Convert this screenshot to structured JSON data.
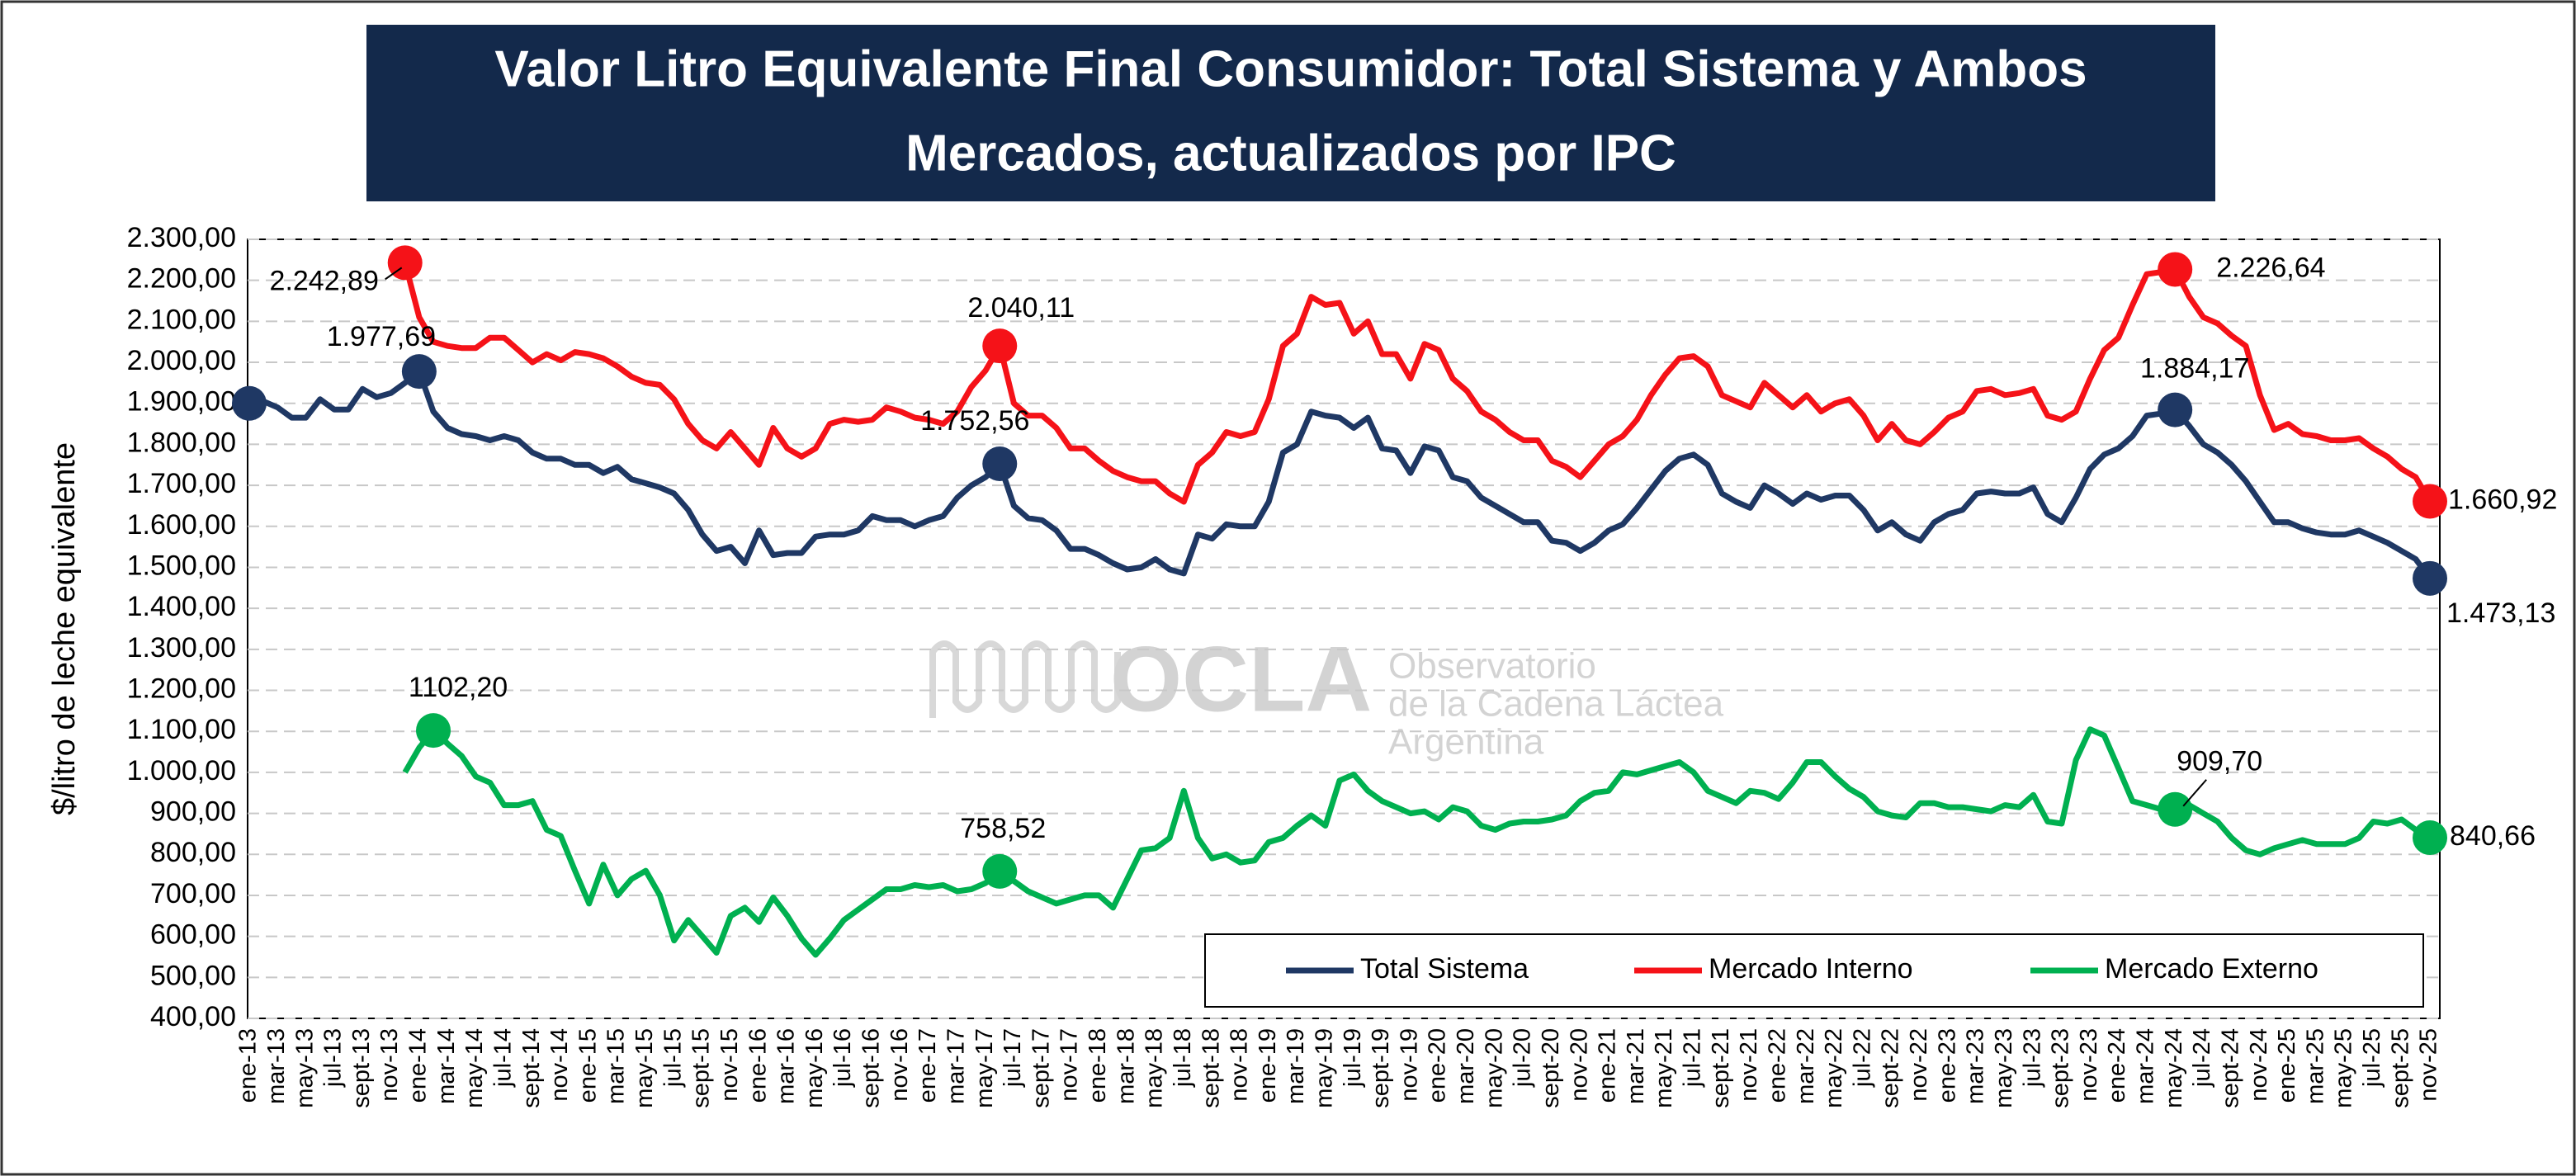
{
  "chart_data": {
    "type": "line",
    "title": [
      "Valor Litro Equivalente Final Consumidor: Total Sistema y Ambos",
      "Mercados, actualizados por IPC"
    ],
    "y_label": "$/litro de leche equivalente",
    "watermark": {
      "logo": "OCLA",
      "lines": [
        "Observatorio",
        "de la Cadena Láctea",
        "Argentina"
      ]
    },
    "categories": [
      "ene-13",
      null,
      "mar-13",
      null,
      "may-13",
      null,
      "jul-13",
      null,
      "sept-13",
      null,
      "nov-13",
      null,
      "ene-14",
      null,
      "mar-14",
      null,
      "may-14",
      null,
      "jul-14",
      null,
      "sept-14",
      null,
      "nov-14",
      null,
      "ene-15",
      null,
      "mar-15",
      null,
      "may-15",
      null,
      "jul-15",
      null,
      "sept-15",
      null,
      "nov-15",
      null,
      "ene-16",
      null,
      "mar-16",
      null,
      "may-16",
      null,
      "jul-16",
      null,
      "sept-16",
      null,
      "nov-16",
      null,
      "ene-17",
      null,
      "mar-17",
      null,
      "may-17",
      null,
      "jul-17",
      null,
      "sept-17",
      null,
      "nov-17",
      null,
      "ene-18",
      null,
      "mar-18",
      null,
      "may-18",
      null,
      "jul-18",
      null,
      "sept-18",
      null,
      "nov-18",
      null,
      "ene-19",
      null,
      "mar-19",
      null,
      "may-19",
      null,
      "jul-19",
      null,
      "sept-19",
      null,
      "nov-19",
      null,
      "ene-20",
      null,
      "mar-20",
      null,
      "may-20",
      null,
      "jul-20",
      null,
      "sept-20",
      null,
      "nov-20",
      null,
      "ene-21",
      null,
      "mar-21",
      null,
      "may-21",
      null,
      "jul-21",
      null,
      "sept-21",
      null,
      "nov-21",
      null,
      "ene-22",
      null,
      "mar-22",
      null,
      "may-22",
      null,
      "jul-22",
      null,
      "sept-22",
      null,
      "nov-22",
      null,
      "ene-23",
      null,
      "mar-23",
      null,
      "may-23",
      null,
      "jul-23",
      null,
      "sept-23",
      null,
      "nov-23",
      null,
      "ene-24",
      null,
      "mar-24",
      null,
      "may-24",
      null,
      "jul-24",
      null,
      "sept-24",
      null,
      "nov-24",
      null,
      "ene-25",
      null,
      "mar-25",
      null,
      "may-25",
      null,
      "jul-25",
      null,
      "sept-25",
      null,
      "nov-25"
    ],
    "series": [
      {
        "name": "Total Sistema",
        "color": "#1f3864",
        "markers": [
          0,
          12,
          53,
          136,
          154
        ],
        "values": [
          1900,
          1905,
          1890,
          1865,
          1865,
          1910,
          1885,
          1885,
          1935,
          1915,
          1925,
          1950,
          1977.69,
          1880,
          1840,
          1825,
          1820,
          1810,
          1820,
          1810,
          1780,
          1765,
          1765,
          1750,
          1750,
          1730,
          1745,
          1715,
          1705,
          1695,
          1680,
          1640,
          1580,
          1540,
          1550,
          1510,
          1590,
          1530,
          1535,
          1535,
          1575,
          1580,
          1580,
          1590,
          1625,
          1615,
          1615,
          1600,
          1615,
          1625,
          1670,
          1700,
          1720,
          1752.56,
          1650,
          1620,
          1615,
          1590,
          1545,
          1545,
          1530,
          1510,
          1495,
          1500,
          1520,
          1495,
          1485,
          1580,
          1570,
          1605,
          1600,
          1600,
          1660,
          1780,
          1800,
          1880,
          1870,
          1865,
          1840,
          1865,
          1790,
          1785,
          1730,
          1795,
          1785,
          1720,
          1710,
          1670,
          1650,
          1630,
          1610,
          1610,
          1565,
          1560,
          1540,
          1560,
          1590,
          1605,
          1645,
          1690,
          1735,
          1765,
          1775,
          1750,
          1680,
          1660,
          1645,
          1700,
          1680,
          1655,
          1680,
          1665,
          1675,
          1675,
          1640,
          1590,
          1610,
          1580,
          1565,
          1610,
          1630,
          1640,
          1680,
          1685,
          1680,
          1680,
          1695,
          1630,
          1610,
          1670,
          1740,
          1775,
          1790,
          1820,
          1870,
          1875,
          1884.17,
          1845,
          1800,
          1780,
          1750,
          1710,
          1660,
          1610,
          1610,
          1595,
          1585,
          1580,
          1580,
          1590,
          1575,
          1560,
          1540,
          1520,
          1473.13
        ],
        "value_labels": [
          null,
          null,
          null,
          null,
          null,
          null,
          null,
          null,
          null,
          null,
          null,
          null,
          "1.977,69",
          null,
          null,
          null,
          null,
          null,
          null,
          null,
          null,
          null,
          null,
          null,
          null,
          null,
          null,
          null,
          null,
          null,
          null,
          null,
          null,
          null,
          null,
          null,
          null,
          null,
          null,
          null,
          null,
          null,
          null,
          null,
          null,
          null,
          null,
          null,
          null,
          null,
          null,
          null,
          null,
          "1.752,56",
          null,
          null,
          null,
          null,
          null,
          null,
          null,
          null,
          null,
          null,
          null,
          null,
          null,
          null,
          null,
          null,
          null,
          null,
          null,
          null,
          null,
          null,
          null,
          null,
          null,
          null,
          null,
          null,
          null,
          null,
          null,
          null,
          null,
          null,
          null,
          null,
          null,
          null,
          null,
          null,
          null,
          null,
          null,
          null,
          null,
          null,
          null,
          null,
          null,
          null,
          null,
          null,
          null,
          null,
          null,
          null,
          null,
          null,
          null,
          null,
          null,
          null,
          null,
          null,
          null,
          null,
          null,
          null,
          null,
          null,
          null,
          null,
          null,
          null,
          null,
          null,
          null,
          null,
          null,
          null,
          null,
          null,
          "1.884,17",
          null,
          null,
          null,
          null,
          null,
          null,
          null,
          null,
          null,
          null,
          null,
          null,
          null,
          null,
          null,
          null,
          null,
          "1.473,13"
        ]
      },
      {
        "name": "Mercado Interno",
        "color": "#f51218",
        "markers": [
          11,
          53,
          136,
          154
        ],
        "values": [
          null,
          null,
          null,
          null,
          null,
          null,
          null,
          null,
          null,
          null,
          null,
          2242.89,
          2110,
          2050,
          2040,
          2035,
          2035,
          2060,
          2060,
          2030,
          2000,
          2020,
          2005,
          2025,
          2020,
          2010,
          1990,
          1965,
          1950,
          1945,
          1910,
          1850,
          1810,
          1790,
          1830,
          1790,
          1750,
          1840,
          1790,
          1770,
          1790,
          1850,
          1860,
          1855,
          1860,
          1890,
          1880,
          1865,
          1860,
          1850,
          1880,
          1940,
          1980,
          2040.11,
          1900,
          1870,
          1870,
          1840,
          1790,
          1790,
          1760,
          1735,
          1720,
          1710,
          1710,
          1680,
          1660,
          1750,
          1780,
          1830,
          1820,
          1830,
          1910,
          2040,
          2070,
          2160,
          2140,
          2145,
          2070,
          2100,
          2020,
          2020,
          1960,
          2045,
          2030,
          1960,
          1930,
          1880,
          1860,
          1830,
          1810,
          1810,
          1760,
          1745,
          1720,
          1760,
          1800,
          1820,
          1860,
          1920,
          1970,
          2010,
          2015,
          1990,
          1920,
          1905,
          1890,
          1950,
          1920,
          1890,
          1920,
          1880,
          1900,
          1910,
          1870,
          1810,
          1850,
          1810,
          1800,
          1830,
          1865,
          1880,
          1930,
          1935,
          1920,
          1925,
          1935,
          1870,
          1860,
          1880,
          1960,
          2030,
          2060,
          2140,
          2215,
          2220,
          2226.64,
          2160,
          2110,
          2095,
          2065,
          2040,
          1920,
          1835,
          1850,
          1825,
          1820,
          1810,
          1810,
          1815,
          1790,
          1770,
          1740,
          1720,
          1660.92
        ],
        "value_labels": [
          null,
          null,
          null,
          null,
          null,
          null,
          null,
          null,
          null,
          null,
          null,
          "2.242,89",
          null,
          null,
          null,
          null,
          null,
          null,
          null,
          null,
          null,
          null,
          null,
          null,
          null,
          null,
          null,
          null,
          null,
          null,
          null,
          null,
          null,
          null,
          null,
          null,
          null,
          null,
          null,
          null,
          null,
          null,
          null,
          null,
          null,
          null,
          null,
          null,
          null,
          null,
          null,
          null,
          null,
          "2.040,11",
          null,
          null,
          null,
          null,
          null,
          null,
          null,
          null,
          null,
          null,
          null,
          null,
          null,
          null,
          null,
          null,
          null,
          null,
          null,
          null,
          null,
          null,
          null,
          null,
          null,
          null,
          null,
          null,
          null,
          null,
          null,
          null,
          null,
          null,
          null,
          null,
          null,
          null,
          null,
          null,
          null,
          null,
          null,
          null,
          null,
          null,
          null,
          null,
          null,
          null,
          null,
          null,
          null,
          null,
          null,
          null,
          null,
          null,
          null,
          null,
          null,
          null,
          null,
          null,
          null,
          null,
          null,
          null,
          null,
          null,
          null,
          null,
          null,
          null,
          null,
          null,
          null,
          null,
          null,
          null,
          null,
          null,
          "2.226,64",
          null,
          null,
          null,
          null,
          null,
          null,
          null,
          null,
          null,
          null,
          null,
          null,
          null,
          null,
          null,
          null,
          null,
          "1.660,92"
        ]
      },
      {
        "name": "Mercado Externo",
        "color": "#00b050",
        "markers": [
          13,
          53,
          136,
          154
        ],
        "values": [
          null,
          null,
          null,
          null,
          null,
          null,
          null,
          null,
          null,
          null,
          null,
          1000,
          1060,
          1102.2,
          1070,
          1040,
          990,
          975,
          920,
          920,
          930,
          860,
          845,
          760,
          680,
          775,
          700,
          740,
          760,
          700,
          590,
          640,
          600,
          560,
          650,
          670,
          635,
          695,
          650,
          595,
          555,
          595,
          640,
          665,
          690,
          715,
          715,
          725,
          720,
          725,
          710,
          715,
          730,
          758.52,
          735,
          710,
          695,
          680,
          690,
          700,
          700,
          670,
          740,
          810,
          815,
          840,
          955,
          840,
          790,
          800,
          780,
          785,
          830,
          840,
          870,
          895,
          870,
          980,
          995,
          955,
          930,
          915,
          900,
          905,
          885,
          915,
          905,
          870,
          860,
          875,
          880,
          880,
          885,
          895,
          930,
          950,
          955,
          1000,
          995,
          1005,
          1015,
          1025,
          1000,
          955,
          940,
          925,
          955,
          950,
          935,
          975,
          1025,
          1025,
          990,
          960,
          940,
          905,
          895,
          890,
          925,
          925,
          915,
          915,
          910,
          905,
          920,
          915,
          945,
          880,
          875,
          1030,
          1105,
          1090,
          1010,
          930,
          920,
          910,
          909.7,
          920,
          900,
          880,
          840,
          810,
          800,
          815,
          825,
          835,
          825,
          825,
          825,
          840,
          880,
          875,
          885,
          860,
          840.66
        ],
        "value_labels": [
          null,
          null,
          null,
          null,
          null,
          null,
          null,
          null,
          null,
          null,
          null,
          null,
          null,
          "1102,20",
          null,
          null,
          null,
          null,
          null,
          null,
          null,
          null,
          null,
          null,
          null,
          null,
          null,
          null,
          null,
          null,
          null,
          null,
          null,
          null,
          null,
          null,
          null,
          null,
          null,
          null,
          null,
          null,
          null,
          null,
          null,
          null,
          null,
          null,
          null,
          null,
          null,
          null,
          null,
          "758,52",
          null,
          null,
          null,
          null,
          null,
          null,
          null,
          null,
          null,
          null,
          null,
          null,
          null,
          null,
          null,
          null,
          null,
          null,
          null,
          null,
          null,
          null,
          null,
          null,
          null,
          null,
          null,
          null,
          null,
          null,
          null,
          null,
          null,
          null,
          null,
          null,
          null,
          null,
          null,
          null,
          null,
          null,
          null,
          null,
          null,
          null,
          null,
          null,
          null,
          null,
          null,
          null,
          null,
          null,
          null,
          null,
          null,
          null,
          null,
          null,
          null,
          null,
          null,
          null,
          null,
          null,
          null,
          null,
          null,
          null,
          null,
          null,
          null,
          null,
          null,
          null,
          null,
          null,
          null,
          null,
          null,
          null,
          "909,70",
          null,
          null,
          null,
          null,
          null,
          null,
          null,
          null,
          null,
          null,
          null,
          null,
          null,
          null,
          null,
          null,
          null,
          "840,66"
        ]
      }
    ],
    "ylim": [
      400,
      2300
    ],
    "yticks": [
      {
        "value": 400,
        "label": "400,00"
      },
      {
        "value": 500,
        "label": "500,00"
      },
      {
        "value": 600,
        "label": "600,00"
      },
      {
        "value": 700,
        "label": "700,00"
      },
      {
        "value": 800,
        "label": "800,00"
      },
      {
        "value": 900,
        "label": "900,00"
      },
      {
        "value": 1000,
        "label": "1.000,00"
      },
      {
        "value": 1100,
        "label": "1.100,00"
      },
      {
        "value": 1200,
        "label": "1.200,00"
      },
      {
        "value": 1300,
        "label": "1.300,00"
      },
      {
        "value": 1400,
        "label": "1.400,00"
      },
      {
        "value": 1500,
        "label": "1.500,00"
      },
      {
        "value": 1600,
        "label": "1.600,00"
      },
      {
        "value": 1700,
        "label": "1.700,00"
      },
      {
        "value": 1800,
        "label": "1.800,00"
      },
      {
        "value": 1900,
        "label": "1.900,00"
      },
      {
        "value": 2000,
        "label": "2.000,00"
      },
      {
        "value": 2100,
        "label": "2.100,00"
      },
      {
        "value": 2200,
        "label": "2.200,00"
      },
      {
        "value": 2300,
        "label": "2.300,00"
      }
    ],
    "grid": true,
    "legend": "lower right"
  }
}
